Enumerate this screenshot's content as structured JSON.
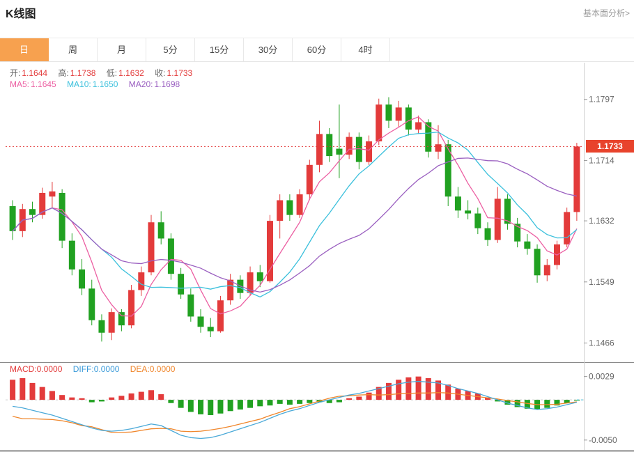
{
  "header": {
    "title": "K线图",
    "link": "基本面分析>"
  },
  "tabs": {
    "items": [
      "日",
      "周",
      "月",
      "5分",
      "15分",
      "30分",
      "60分",
      "4时"
    ],
    "active_index": 0
  },
  "legend": {
    "open_label": "开:",
    "open_value": "1.1644",
    "high_label": "高:",
    "high_value": "1.1738",
    "low_label": "低:",
    "low_value": "1.1632",
    "close_label": "收:",
    "close_value": "1.1733",
    "ma5_label": "MA5:",
    "ma5_value": "1.1645",
    "ma10_label": "MA10:",
    "ma10_value": "1.1650",
    "ma20_label": "MA20:",
    "ma20_value": "1.1698",
    "macd_label": "MACD:0.0000",
    "diff_label": "DIFF:0.0000",
    "dea_label": "DEA:0.0000"
  },
  "colors": {
    "up": "#e33b3b",
    "down": "#21a121",
    "ma5": "#ec5fa2",
    "ma10": "#3bc0dc",
    "ma20": "#9a5fc0",
    "diff_line": "#4aa9d8",
    "dea_line": "#f0862b",
    "tag_bg": "#e8432c",
    "axis_text": "#666",
    "grid": "#cfcfcf"
  },
  "chart_data": {
    "type": "candlestick+macd",
    "title": "K线图",
    "price_axis": {
      "min": 1.144,
      "max": 1.1845,
      "ticks": [
        "1.1797",
        "1.1714",
        "1.1632",
        "1.1549",
        "1.1466"
      ]
    },
    "current_price": 1.1733,
    "current_price_label": "1.1733",
    "ma_periods": [
      5,
      10,
      20
    ],
    "candles": [
      [
        1.1652,
        1.166,
        1.1606,
        1.1618
      ],
      [
        1.1618,
        1.1655,
        1.161,
        1.1648
      ],
      [
        1.1648,
        1.1658,
        1.163,
        1.164
      ],
      [
        1.164,
        1.1677,
        1.1635,
        1.167
      ],
      [
        1.1665,
        1.1685,
        1.165,
        1.1672
      ],
      [
        1.167,
        1.1675,
        1.1595,
        1.1605
      ],
      [
        1.1605,
        1.1615,
        1.1558,
        1.1566
      ],
      [
        1.1566,
        1.158,
        1.1531,
        1.154
      ],
      [
        1.154,
        1.1552,
        1.149,
        1.1497
      ],
      [
        1.1497,
        1.1505,
        1.1468,
        1.148
      ],
      [
        1.148,
        1.1513,
        1.147,
        1.1508
      ],
      [
        1.1508,
        1.1512,
        1.1482,
        1.149
      ],
      [
        1.149,
        1.1545,
        1.1486,
        1.1538
      ],
      [
        1.1538,
        1.157,
        1.153,
        1.1562
      ],
      [
        1.1562,
        1.164,
        1.1558,
        1.163
      ],
      [
        1.163,
        1.1645,
        1.16,
        1.1608
      ],
      [
        1.1608,
        1.1615,
        1.1552,
        1.156
      ],
      [
        1.156,
        1.1568,
        1.1526,
        1.1532
      ],
      [
        1.1532,
        1.154,
        1.1495,
        1.1502
      ],
      [
        1.1502,
        1.1512,
        1.148,
        1.1488
      ],
      [
        1.1488,
        1.15,
        1.1474,
        1.1482
      ],
      [
        1.1482,
        1.153,
        1.148,
        1.1524
      ],
      [
        1.1524,
        1.156,
        1.1518,
        1.1552
      ],
      [
        1.1552,
        1.1558,
        1.1526,
        1.1534
      ],
      [
        1.1534,
        1.157,
        1.153,
        1.1562
      ],
      [
        1.1562,
        1.1572,
        1.1542,
        1.155
      ],
      [
        1.155,
        1.164,
        1.1548,
        1.1632
      ],
      [
        1.1632,
        1.1668,
        1.1608,
        1.166
      ],
      [
        1.166,
        1.1668,
        1.1632,
        1.164
      ],
      [
        1.164,
        1.1675,
        1.1636,
        1.1668
      ],
      [
        1.1668,
        1.1715,
        1.166,
        1.1708
      ],
      [
        1.1708,
        1.1768,
        1.1698,
        1.175
      ],
      [
        1.175,
        1.1758,
        1.1712,
        1.172
      ],
      [
        1.173,
        1.179,
        1.169,
        1.1722
      ],
      [
        1.1722,
        1.1752,
        1.1716,
        1.1746
      ],
      [
        1.1746,
        1.1752,
        1.1702,
        1.1712
      ],
      [
        1.1712,
        1.1748,
        1.1708,
        1.174
      ],
      [
        1.174,
        1.1798,
        1.1735,
        1.179
      ],
      [
        1.179,
        1.18,
        1.1758,
        1.1768
      ],
      [
        1.1768,
        1.1795,
        1.176,
        1.1786
      ],
      [
        1.1786,
        1.179,
        1.1748,
        1.1756
      ],
      [
        1.1756,
        1.1775,
        1.175,
        1.1766
      ],
      [
        1.1766,
        1.177,
        1.1718,
        1.1726
      ],
      [
        1.1726,
        1.1762,
        1.1716,
        1.1736
      ],
      [
        1.1736,
        1.1742,
        1.1652,
        1.1665
      ],
      [
        1.1665,
        1.1678,
        1.1636,
        1.1646
      ],
      [
        1.1646,
        1.166,
        1.1634,
        1.1642
      ],
      [
        1.1642,
        1.165,
        1.1614,
        1.1622
      ],
      [
        1.1622,
        1.163,
        1.1598,
        1.1606
      ],
      [
        1.1606,
        1.1678,
        1.1602,
        1.1662
      ],
      [
        1.1662,
        1.1668,
        1.162,
        1.1628
      ],
      [
        1.1628,
        1.1636,
        1.1596,
        1.1604
      ],
      [
        1.1604,
        1.1614,
        1.1586,
        1.1594
      ],
      [
        1.1594,
        1.16,
        1.1548,
        1.1558
      ],
      [
        1.1558,
        1.158,
        1.155,
        1.1572
      ],
      [
        1.1572,
        1.1605,
        1.1566,
        1.16
      ],
      [
        1.16,
        1.165,
        1.1596,
        1.1644
      ],
      [
        1.1644,
        1.1738,
        1.1632,
        1.1733
      ]
    ],
    "macd_axis": {
      "min": -0.0064,
      "max": 0.0046,
      "ticks": [
        "0.0029",
        "-0.0050"
      ]
    },
    "macd_hist": [
      0.0025,
      0.0027,
      0.0021,
      0.0016,
      0.0011,
      0.0006,
      0.0003,
      0.0002,
      -0.0003,
      -0.0002,
      0.0003,
      0.0005,
      0.0008,
      0.001,
      0.0012,
      0.0007,
      -0.0004,
      -0.001,
      -0.0015,
      -0.0018,
      -0.0019,
      -0.0017,
      -0.0014,
      -0.0012,
      -0.001,
      -0.0008,
      -0.0007,
      -0.0005,
      -0.0006,
      -0.0005,
      -0.0004,
      -0.0003,
      -0.0004,
      -0.0003,
      0.0002,
      0.0004,
      0.0009,
      0.0016,
      0.0021,
      0.0025,
      0.0028,
      0.0029,
      0.0027,
      0.0024,
      0.0019,
      0.0014,
      0.0011,
      0.0008,
      0.0003,
      -0.0002,
      -0.0006,
      -0.0009,
      -0.0011,
      -0.0012,
      -0.001,
      -0.0007,
      -0.0004,
      -0.0001
    ],
    "macd_diff": [
      -0.0008,
      -0.001,
      -0.0013,
      -0.0016,
      -0.0019,
      -0.0023,
      -0.0027,
      -0.0031,
      -0.0035,
      -0.0038,
      -0.0039,
      -0.0038,
      -0.0036,
      -0.0033,
      -0.003,
      -0.0032,
      -0.0038,
      -0.0044,
      -0.0047,
      -0.0048,
      -0.0047,
      -0.0044,
      -0.004,
      -0.0036,
      -0.0032,
      -0.0028,
      -0.0023,
      -0.0018,
      -0.0014,
      -0.0011,
      -0.0007,
      -0.0003,
      0.0,
      0.0003,
      0.0006,
      0.0008,
      0.0011,
      0.0014,
      0.0017,
      0.002,
      0.0022,
      0.0023,
      0.0022,
      0.0021,
      0.0018,
      0.0014,
      0.0011,
      0.0008,
      0.0004,
      0.0,
      -0.0004,
      -0.0007,
      -0.001,
      -0.0012,
      -0.0011,
      -0.0009,
      -0.0006,
      -0.0003
    ]
  }
}
